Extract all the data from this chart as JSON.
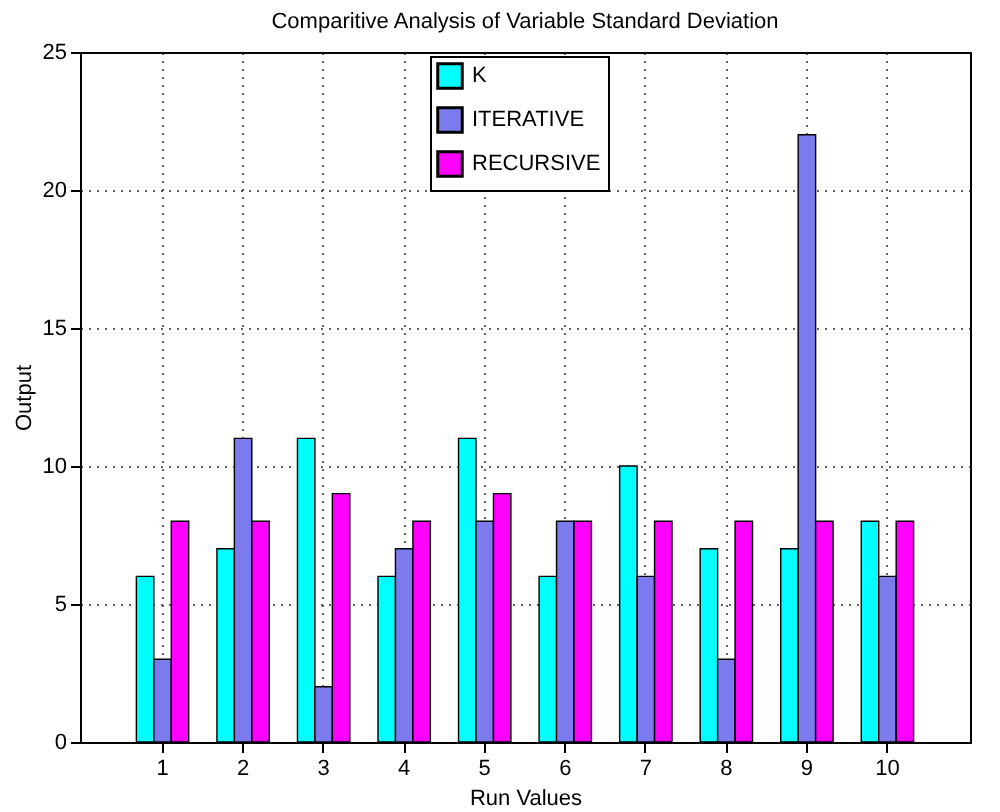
{
  "chart_data": {
    "type": "bar",
    "title": "Comparitive Analysis of Variable Standard Deviation",
    "xlabel": "Run Values",
    "ylabel": "Output",
    "categories": [
      "1",
      "2",
      "3",
      "4",
      "5",
      "6",
      "7",
      "8",
      "9",
      "10"
    ],
    "series": [
      {
        "name": "K",
        "color": "#00ffff",
        "values": [
          6,
          7,
          11,
          6,
          11,
          6,
          10,
          7,
          7,
          8
        ]
      },
      {
        "name": "ITERATIVE",
        "color": "#7b7bee",
        "values": [
          3,
          11,
          2,
          7,
          8,
          8,
          6,
          3,
          22,
          6
        ]
      },
      {
        "name": "RECURSIVE",
        "color": "#ff00ff",
        "values": [
          8,
          8,
          9,
          8,
          9,
          8,
          8,
          8,
          8,
          8
        ]
      }
    ],
    "ylim": [
      0,
      25
    ],
    "yticks": [
      0,
      5,
      10,
      15,
      20,
      25
    ],
    "grid": true,
    "legend": "top"
  }
}
